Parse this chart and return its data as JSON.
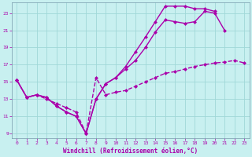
{
  "xlabel": "Windchill (Refroidissement éolien,°C)",
  "bg_color": "#c8f0f0",
  "grid_color": "#a0d8d8",
  "line_color": "#aa00aa",
  "xlim": [
    -0.5,
    23.5
  ],
  "ylim": [
    8.5,
    24.2
  ],
  "xticks": [
    0,
    1,
    2,
    3,
    4,
    5,
    6,
    7,
    8,
    9,
    10,
    11,
    12,
    13,
    14,
    15,
    16,
    17,
    18,
    19,
    20,
    21,
    22,
    23
  ],
  "yticks": [
    9,
    11,
    13,
    15,
    17,
    19,
    21,
    23
  ],
  "line1_x": [
    0,
    1,
    2,
    3,
    4,
    5,
    6,
    7,
    8,
    9,
    10,
    11,
    12,
    13,
    14,
    15,
    16,
    17,
    18,
    19,
    20
  ],
  "line1_y": [
    15.2,
    13.2,
    13.5,
    13.2,
    12.2,
    11.5,
    11.0,
    9.0,
    13.0,
    14.8,
    15.5,
    16.8,
    18.5,
    20.2,
    22.0,
    23.8,
    23.8,
    23.8,
    23.5,
    23.5,
    23.2
  ],
  "line2_x": [
    0,
    1,
    2,
    3,
    4,
    5,
    6,
    7,
    8,
    9,
    10,
    11,
    12,
    13,
    14,
    15,
    16,
    17,
    18,
    19,
    20,
    21
  ],
  "line2_y": [
    15.2,
    13.2,
    13.5,
    13.2,
    12.2,
    11.5,
    11.0,
    9.0,
    13.0,
    14.8,
    15.5,
    16.5,
    17.5,
    19.0,
    20.8,
    22.2,
    22.0,
    21.8,
    22.0,
    23.2,
    23.0,
    21.0
  ],
  "line3_x": [
    0,
    1,
    2,
    3,
    4,
    5,
    6,
    7,
    8,
    9,
    10,
    11,
    12,
    13,
    14,
    15,
    16,
    17,
    18,
    19,
    20,
    21,
    22,
    23
  ],
  "line3_y": [
    15.2,
    13.2,
    13.5,
    13.0,
    12.5,
    12.0,
    11.5,
    9.0,
    15.5,
    13.5,
    13.8,
    14.0,
    14.5,
    15.0,
    15.5,
    16.0,
    16.2,
    16.5,
    16.8,
    17.0,
    17.2,
    17.3,
    17.5,
    17.2
  ],
  "marker": "D",
  "markersize": 2.5,
  "linewidth": 1.0
}
